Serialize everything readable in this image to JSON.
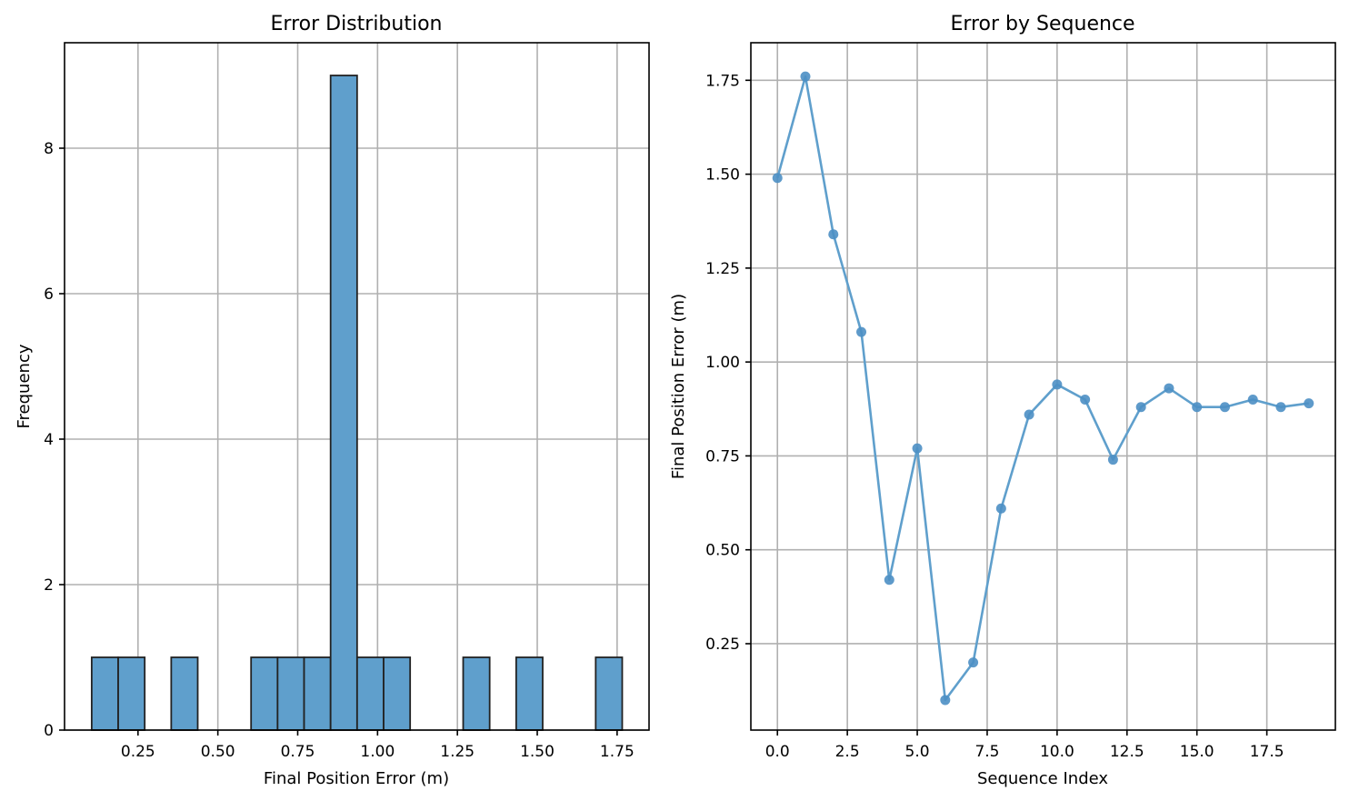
{
  "colors": {
    "bar_fill": "#5f9fcc",
    "bar_edge": "#222222",
    "line": "#5f9fcc",
    "marker": "#4c8fc4"
  },
  "chart_data": [
    {
      "type": "bar",
      "title": "Error Distribution",
      "xlabel": "Final Position Error (m)",
      "ylabel": "Frequency",
      "xlim": [
        0.02,
        1.85
      ],
      "ylim": [
        0,
        9.45
      ],
      "xticks": [
        0.25,
        0.5,
        0.75,
        1.0,
        1.25,
        1.5,
        1.75
      ],
      "xtick_labels": [
        "0.25",
        "0.50",
        "0.75",
        "1.00",
        "1.25",
        "1.50",
        "1.75"
      ],
      "yticks": [
        0,
        2,
        4,
        6,
        8
      ],
      "ytick_labels": [
        "0",
        "2",
        "4",
        "6",
        "8"
      ],
      "grid": true,
      "bins": [
        {
          "x0": 0.105,
          "x1": 0.188,
          "count": 1
        },
        {
          "x0": 0.188,
          "x1": 0.271,
          "count": 1
        },
        {
          "x0": 0.354,
          "x1": 0.437,
          "count": 1
        },
        {
          "x0": 0.604,
          "x1": 0.687,
          "count": 1
        },
        {
          "x0": 0.687,
          "x1": 0.77,
          "count": 1
        },
        {
          "x0": 0.77,
          "x1": 0.853,
          "count": 1
        },
        {
          "x0": 0.853,
          "x1": 0.936,
          "count": 9
        },
        {
          "x0": 0.936,
          "x1": 1.019,
          "count": 1
        },
        {
          "x0": 1.019,
          "x1": 1.102,
          "count": 1
        },
        {
          "x0": 1.268,
          "x1": 1.351,
          "count": 1
        },
        {
          "x0": 1.434,
          "x1": 1.517,
          "count": 1
        },
        {
          "x0": 1.683,
          "x1": 1.766,
          "count": 1
        }
      ]
    },
    {
      "type": "line",
      "title": "Error by Sequence",
      "xlabel": "Sequence Index",
      "ylabel": "Final Position Error (m)",
      "xlim": [
        -0.95,
        19.95
      ],
      "ylim": [
        0.02,
        1.85
      ],
      "xticks": [
        0,
        2.5,
        5,
        7.5,
        10,
        12.5,
        15,
        17.5
      ],
      "xtick_labels": [
        "0.0",
        "2.5",
        "5.0",
        "7.5",
        "10.0",
        "12.5",
        "15.0",
        "17.5"
      ],
      "yticks": [
        0.25,
        0.5,
        0.75,
        1.0,
        1.25,
        1.5,
        1.75
      ],
      "ytick_labels": [
        "0.25",
        "0.50",
        "0.75",
        "1.00",
        "1.25",
        "1.50",
        "1.75"
      ],
      "grid": true,
      "x": [
        0,
        1,
        2,
        3,
        4,
        5,
        6,
        7,
        8,
        9,
        10,
        11,
        12,
        13,
        14,
        15,
        16,
        17,
        18,
        19
      ],
      "values": [
        1.49,
        1.76,
        1.34,
        1.08,
        0.42,
        0.77,
        0.1,
        0.2,
        0.61,
        0.86,
        0.94,
        0.9,
        0.74,
        0.88,
        0.93,
        0.88,
        0.88,
        0.9,
        0.88,
        0.89
      ]
    }
  ]
}
